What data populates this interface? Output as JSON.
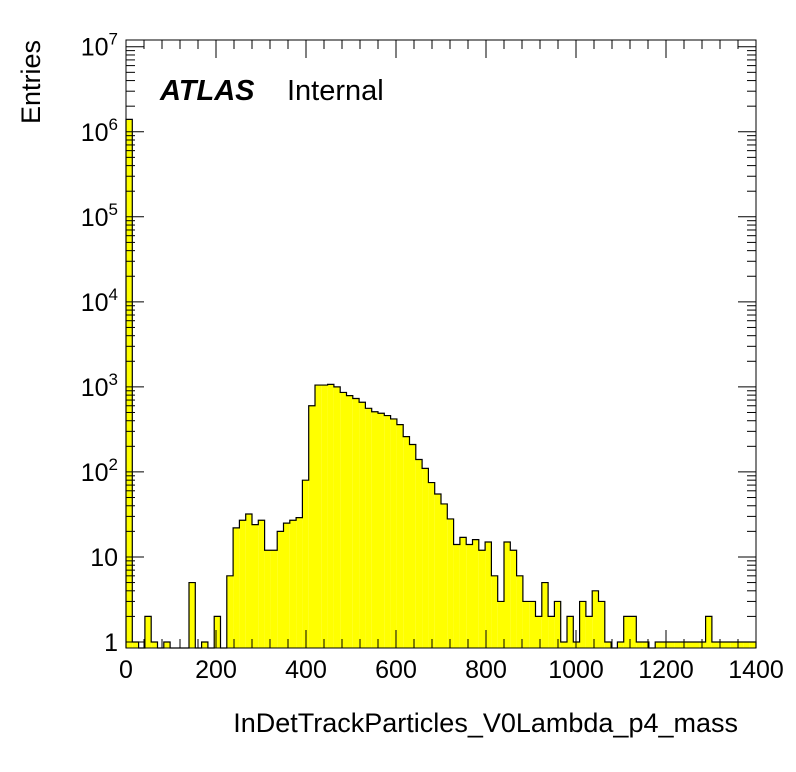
{
  "chart_data": {
    "type": "bar",
    "style": "histogram-step-filled",
    "fill_color": "#ffff00",
    "line_color": "#000000",
    "xlabel": "InDetTrackParticles_V0Lambda_p4_mass",
    "ylabel": "Entries",
    "xlim": [
      0,
      1400
    ],
    "ylim": [
      0.85,
      12000000
    ],
    "y_scale": "log",
    "bin_width": 14,
    "x_ticks": [
      "0",
      "200",
      "400",
      "600",
      "800",
      "1000",
      "1200",
      "1400"
    ],
    "x_tick_values": [
      0,
      200,
      400,
      600,
      800,
      1000,
      1200,
      1400
    ],
    "y_ticks": [
      {
        "value": 1,
        "label": "1",
        "sup": ""
      },
      {
        "value": 10,
        "label": "10",
        "sup": ""
      },
      {
        "value": 100,
        "label": "10",
        "sup": "2"
      },
      {
        "value": 1000,
        "label": "10",
        "sup": "3"
      },
      {
        "value": 10000,
        "label": "10",
        "sup": "4"
      },
      {
        "value": 100000,
        "label": "10",
        "sup": "5"
      },
      {
        "value": 1000000,
        "label": "10",
        "sup": "6"
      },
      {
        "value": 10000000,
        "label": "10",
        "sup": "7"
      }
    ],
    "values": [
      1400000,
      1,
      0,
      2,
      1,
      0,
      1,
      0,
      0,
      0,
      5,
      0,
      1,
      0,
      2,
      0,
      6,
      22,
      27,
      32,
      24,
      27,
      12,
      12,
      20,
      25,
      27,
      29,
      80,
      600,
      1050,
      1050,
      1070,
      1000,
      860,
      790,
      730,
      660,
      560,
      510,
      490,
      460,
      420,
      360,
      260,
      210,
      140,
      110,
      75,
      55,
      42,
      28,
      14,
      17,
      14,
      16,
      12,
      15,
      6,
      3,
      15,
      12,
      6,
      3,
      3,
      2,
      5,
      2,
      3,
      1,
      2,
      1,
      3,
      2,
      4,
      3,
      1,
      0,
      1,
      2,
      2,
      1,
      1,
      0,
      1,
      1,
      1,
      1,
      1,
      1,
      1,
      1,
      2,
      1,
      1,
      1,
      1,
      1,
      1,
      1
    ]
  },
  "annotations": {
    "atlas": "ATLAS",
    "internal": "Internal"
  }
}
